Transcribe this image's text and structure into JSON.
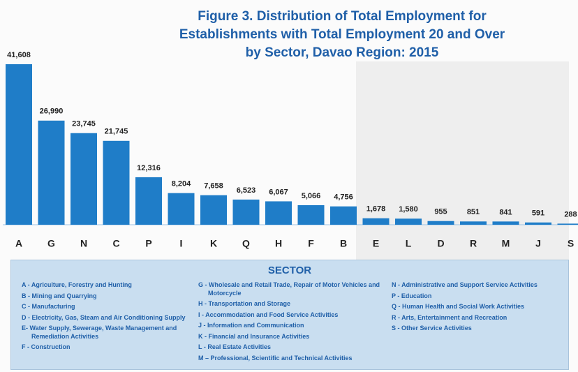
{
  "chart_data": {
    "type": "bar",
    "title": [
      "Figure 3.  Distribution of Total Employment for",
      "Establishments with Total Employment 20 and Over",
      "by Sector,  Davao Region: 2015"
    ],
    "categories": [
      "A",
      "G",
      "N",
      "C",
      "P",
      "I",
      "K",
      "Q",
      "H",
      "F",
      "B",
      "E",
      "L",
      "D",
      "R",
      "M",
      "J",
      "S"
    ],
    "values": [
      41608,
      26990,
      23745,
      21745,
      12316,
      8204,
      7658,
      6523,
      6067,
      5066,
      4756,
      1678,
      1580,
      955,
      851,
      841,
      591,
      288
    ],
    "value_labels": [
      "41,608",
      "26,990",
      "23,745",
      "21,745",
      "12,316",
      "8,204",
      "7,658",
      "6,523",
      "6,067",
      "5,066",
      "4,756",
      "1,678",
      "1,580",
      "955",
      "851",
      "841",
      "591",
      "288"
    ],
    "color": "#1f7dc8",
    "legend": {
      "title": "SECTOR",
      "columns": [
        [
          "A - Agriculture, Forestry and Hunting",
          "B - Mining and Quarrying",
          "C - Manufacturing",
          "D - Electricity, Gas, Steam and Air Conditioning Supply",
          "E- Water Supply, Sewerage, Waste Management and Remediation Activities",
          "F - Construction"
        ],
        [
          "G - Wholesale and Retail Trade, Repair of Motor Vehicles and Motorcycle",
          "H - Transportation and Storage",
          "I - Accommodation and Food Service Activities",
          "J - Information and Communication",
          "K - Financial and Insurance Activities",
          "L - Real Estate Activities",
          "M – Professional, Scientific and Technical Activities"
        ],
        [
          "N - Administrative and Support Service Activities",
          "P - Education",
          "Q - Human Health and Social Work Activities",
          "R - Arts, Entertainment and Recreation",
          "S - Other Service Activities"
        ]
      ]
    }
  }
}
